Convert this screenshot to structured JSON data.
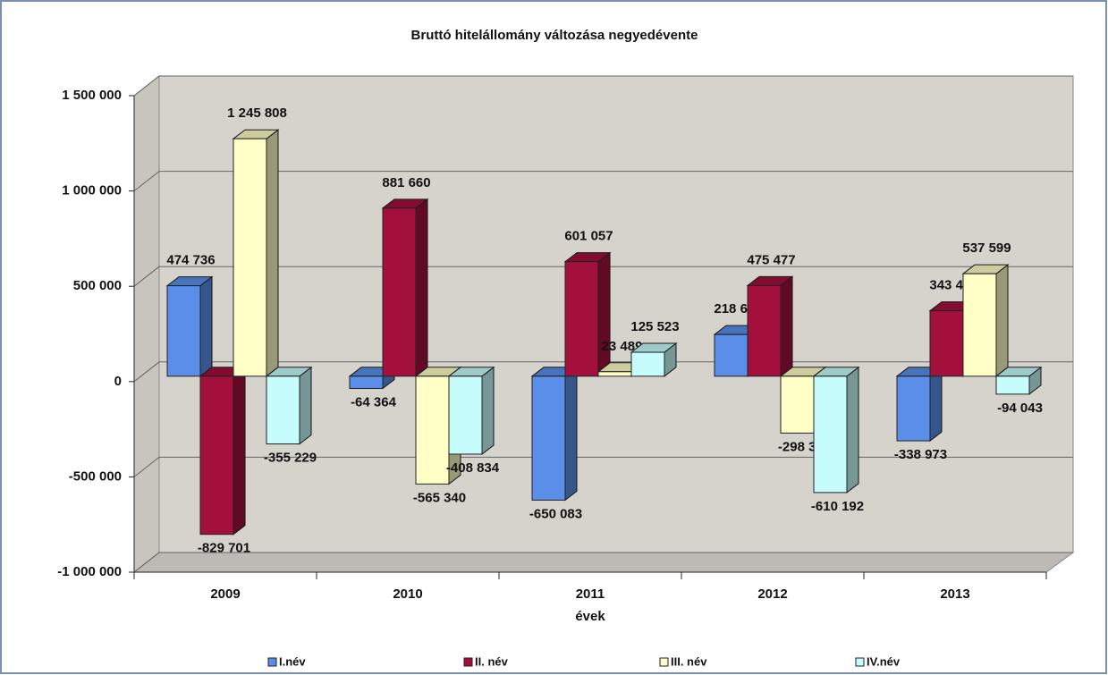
{
  "chart_data": {
    "type": "bar3d",
    "title": "Bruttó hitelállomány változása negyedévente",
    "x_label": "évek",
    "categories": [
      "2009",
      "2010",
      "2011",
      "2012",
      "2013"
    ],
    "series": [
      {
        "name": "I.név",
        "color": "#5a8ee8",
        "values": [
          474736,
          -64364,
          -650083,
          218692,
          -338973
        ],
        "value_labels": [
          "474 736",
          "-64 364",
          "-650 083",
          "218 692",
          "-338 973"
        ]
      },
      {
        "name": "II. név",
        "color": "#a3103c",
        "values": [
          -829701,
          881660,
          601057,
          475477,
          343484
        ],
        "value_labels": [
          "-829 701",
          "881 660",
          "601 057",
          "475 477",
          "343 484"
        ]
      },
      {
        "name": "III. név",
        "color": "#ffffc6",
        "values": [
          1245808,
          -565340,
          23489,
          -298312,
          537599
        ],
        "value_labels": [
          "1 245 808",
          "-565 340",
          "23 489",
          "-298 312",
          "537 599"
        ]
      },
      {
        "name": "IV.név",
        "color": "#c6fcfc",
        "values": [
          -355229,
          -408834,
          125523,
          -610192,
          -94043
        ],
        "value_labels": [
          "-355 229",
          "-408 834",
          "125 523",
          "-610 192",
          "-94 043"
        ]
      }
    ],
    "ylim": [
      -1000000,
      1500000
    ],
    "yticks": [
      {
        "value": -1000000,
        "label": "-1 000 000"
      },
      {
        "value": -500000,
        "label": "-500 000"
      },
      0,
      {
        "value": 500000,
        "label": "500 000"
      },
      {
        "value": 1000000,
        "label": "1 000 000"
      },
      {
        "value": 1500000,
        "label": "1 500 000"
      }
    ],
    "grid": true,
    "legend": "bottom"
  }
}
